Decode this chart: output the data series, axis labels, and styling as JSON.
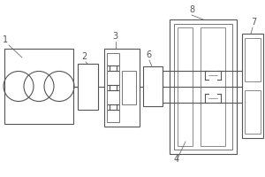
{
  "bg_color": "#ffffff",
  "line_color": "#555555",
  "label_color": "#333333",
  "fig_w": 3.0,
  "fig_h": 2.0,
  "dpi": 100
}
